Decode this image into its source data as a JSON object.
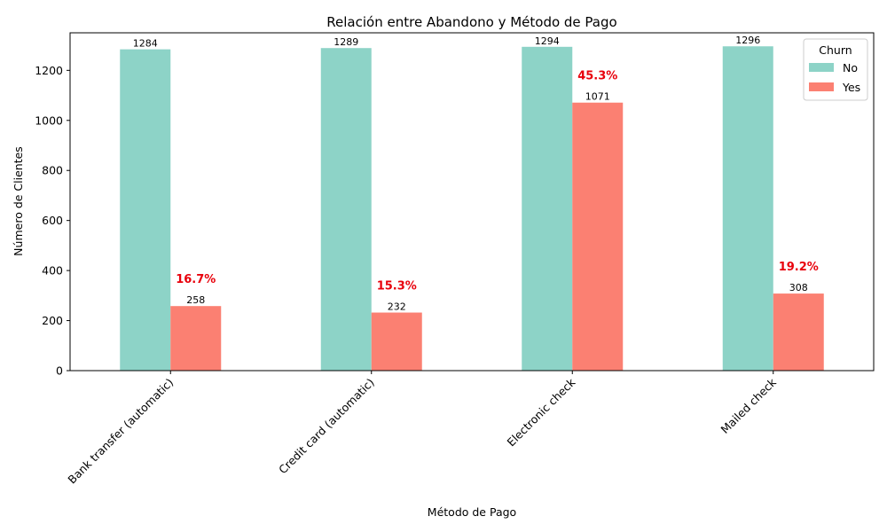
{
  "chart_data": {
    "type": "bar",
    "title": "Relación entre Abandono y Método de Pago",
    "xlabel": "Método de Pago",
    "ylabel": "Número de Clientes",
    "categories": [
      "Bank transfer (automatic)",
      "Credit card (automatic)",
      "Electronic check",
      "Mailed check"
    ],
    "series": [
      {
        "name": "No",
        "values": [
          1284,
          1289,
          1294,
          1296
        ],
        "color": "#8dd3c7"
      },
      {
        "name": "Yes",
        "values": [
          258,
          232,
          1071,
          308
        ],
        "color": "#fb8072"
      }
    ],
    "annotations": [
      "16.7%",
      "15.3%",
      "45.3%",
      "19.2%"
    ],
    "annotation_color": "#e8000b",
    "ylim": [
      0,
      1350
    ],
    "yticks": [
      0,
      200,
      400,
      600,
      800,
      1000,
      1200
    ],
    "grid": false,
    "legend": {
      "title": "Churn",
      "placement": "top-right"
    }
  }
}
